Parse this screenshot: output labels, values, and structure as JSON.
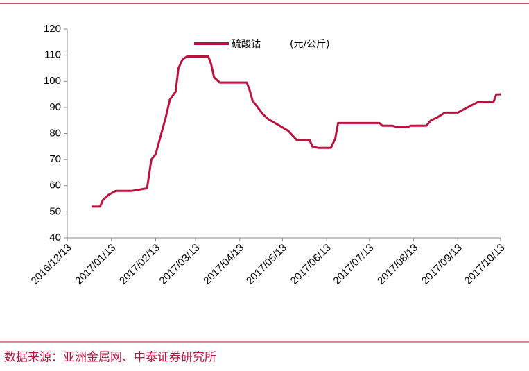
{
  "chart_data": {
    "type": "line",
    "x": [
      "2016/12/30",
      "2017/01/05",
      "2017/01/07",
      "2017/01/11",
      "2017/01/16",
      "2017/01/27",
      "2017/02/07",
      "2017/02/10",
      "2017/02/13",
      "2017/02/17",
      "2017/02/20",
      "2017/02/23",
      "2017/02/27",
      "2017/03/01",
      "2017/03/04",
      "2017/03/07",
      "2017/03/22",
      "2017/03/24",
      "2017/03/26",
      "2017/03/30",
      "2017/04/18",
      "2017/04/20",
      "2017/04/22",
      "2017/04/25",
      "2017/04/29",
      "2017/05/03",
      "2017/05/11",
      "2017/05/17",
      "2017/05/23",
      "2017/06/01",
      "2017/06/03",
      "2017/06/07",
      "2017/06/16",
      "2017/06/19",
      "2017/06/21",
      "2017/07/20",
      "2017/07/22",
      "2017/07/29",
      "2017/08/01",
      "2017/08/09",
      "2017/08/11",
      "2017/08/22",
      "2017/08/25",
      "2017/08/29",
      "2017/09/01",
      "2017/09/04",
      "2017/09/13",
      "2017/09/18",
      "2017/09/27",
      "2017/10/08",
      "2017/10/10",
      "2017/10/13"
    ],
    "series": [
      {
        "name": "硫酸钴",
        "color": "#b8123e",
        "values": [
          52,
          52,
          54.5,
          56.5,
          58,
          58,
          59,
          70,
          72,
          80,
          86,
          93,
          96,
          105,
          108.5,
          109.5,
          109.5,
          106.5,
          101.5,
          99.5,
          99.5,
          96.5,
          92.5,
          90.5,
          87.5,
          85.5,
          83,
          81,
          77.5,
          77.5,
          75,
          74.5,
          74.5,
          78,
          84,
          84,
          83,
          83,
          82.5,
          82.5,
          83,
          83,
          85,
          86,
          87,
          88,
          88,
          89.5,
          92,
          92,
          95,
          95
        ]
      }
    ],
    "unit": "(元/公斤)",
    "xlim": [
      "2016/12/13",
      "2017/10/13"
    ],
    "xticks": [
      "2016/12/13",
      "2017/01/13",
      "2017/02/13",
      "2017/03/13",
      "2017/04/13",
      "2017/05/13",
      "2017/06/13",
      "2017/07/13",
      "2017/08/13",
      "2017/09/13",
      "2017/10/13"
    ],
    "ylim": [
      40,
      120
    ],
    "yticks": [
      40,
      50,
      60,
      70,
      80,
      90,
      100,
      110,
      120
    ],
    "grid": false,
    "source": "数据来源：亚洲金属网、中泰证券研究所"
  }
}
